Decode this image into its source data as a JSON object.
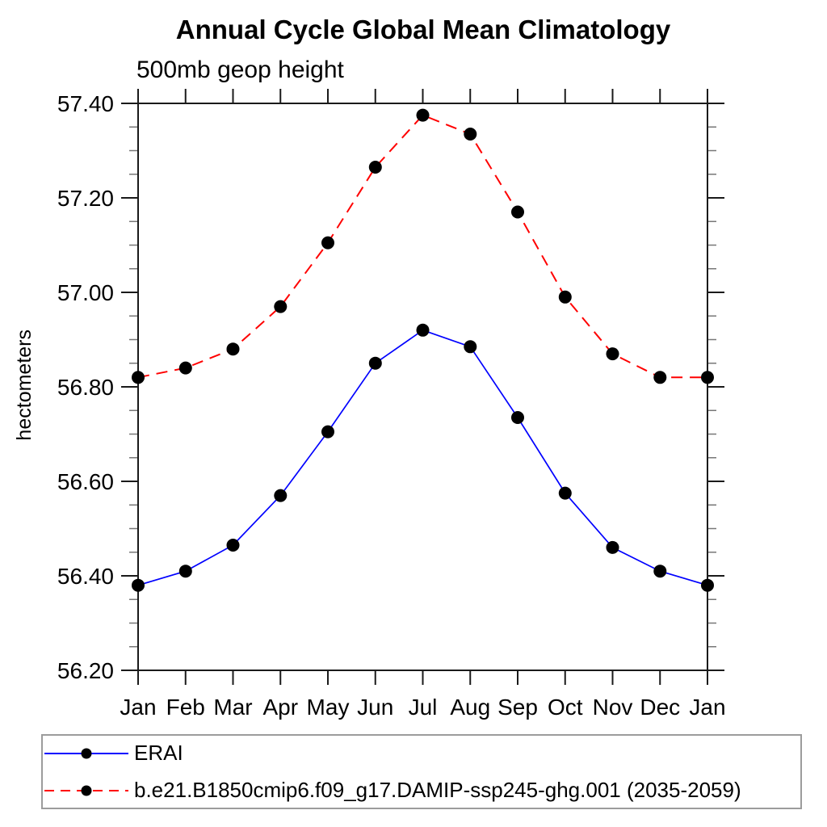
{
  "page": {
    "title": "Annual Cycle Global Mean Climatology",
    "subtitle": "500mb geop height"
  },
  "chart_data": {
    "type": "line",
    "title": "Annual Cycle Global Mean Climatology",
    "subtitle": "500mb geop height",
    "xlabel": "",
    "ylabel": "hectometers",
    "categories": [
      "Jan",
      "Feb",
      "Mar",
      "Apr",
      "May",
      "Jun",
      "Jul",
      "Aug",
      "Sep",
      "Oct",
      "Nov",
      "Dec",
      "Jan"
    ],
    "ylim": [
      56.2,
      57.4
    ],
    "ytick_major_step": 0.2,
    "ytick_minor_step": 0.05,
    "ytick_labels": [
      "56.20",
      "56.40",
      "56.60",
      "56.80",
      "57.00",
      "57.20",
      "57.40"
    ],
    "grid": false,
    "legend_position": "bottom-left-box",
    "series": [
      {
        "name": "ERAI",
        "color": "#0000ff",
        "line_style": "solid",
        "marker": "filled-circle",
        "marker_color": "#000000",
        "values": [
          56.38,
          56.41,
          56.465,
          56.57,
          56.705,
          56.85,
          56.92,
          56.885,
          56.735,
          56.575,
          56.46,
          56.41,
          56.38
        ]
      },
      {
        "name": "b.e21.B1850cmip6.f09_g17.DAMIP-ssp245-ghg.001 (2035-2059)",
        "color": "#ff0000",
        "line_style": "dashed",
        "marker": "filled-circle",
        "marker_color": "#000000",
        "values": [
          56.82,
          56.84,
          56.88,
          56.97,
          57.105,
          57.265,
          57.375,
          57.335,
          57.17,
          56.99,
          56.87,
          56.82,
          56.82
        ]
      }
    ]
  },
  "colors": {
    "background": "#ffffff",
    "axis": "#1a1a1a",
    "minor_tick": "#777777",
    "legend_border": "#9c9c9c",
    "erai_line": "#0000ff",
    "model_line": "#ff0000",
    "marker": "#000000"
  }
}
